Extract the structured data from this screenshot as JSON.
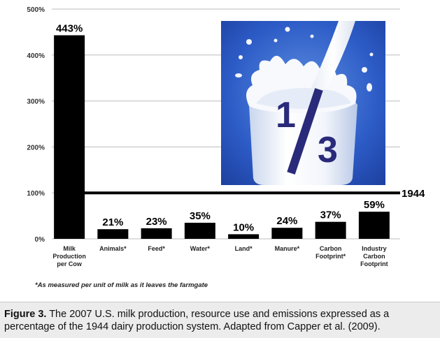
{
  "chart_data": {
    "type": "bar",
    "categories": [
      "Milk Production per Cow",
      "Animals*",
      "Feed*",
      "Water*",
      "Land*",
      "Manure*",
      "Carbon Footprint*",
      "Industry Carbon Footprint"
    ],
    "values": [
      443,
      21,
      23,
      35,
      10,
      24,
      37,
      59
    ],
    "data_labels": [
      "443%",
      "21%",
      "23%",
      "35%",
      "10%",
      "24%",
      "37%",
      "59%"
    ],
    "yticks": [
      "0%",
      "100%",
      "200%",
      "300%",
      "400%",
      "500%"
    ],
    "ylim": [
      0,
      500
    ],
    "grid": true,
    "reference_line": {
      "value": 100,
      "label": "1944"
    },
    "bar_color": "#000000"
  },
  "photo": {
    "fraction_numerator": "1",
    "fraction_denominator": "3",
    "fraction_color": "#2a2a7a"
  },
  "footnote": "*As measured per unit of milk as it leaves the farmgate",
  "caption": {
    "label": "Figure 3.",
    "text": " The 2007 U.S. milk production, resource use and emissions expressed as a percentage of the 1944 dairy production system.  Adapted from Capper et al. (2009)."
  }
}
